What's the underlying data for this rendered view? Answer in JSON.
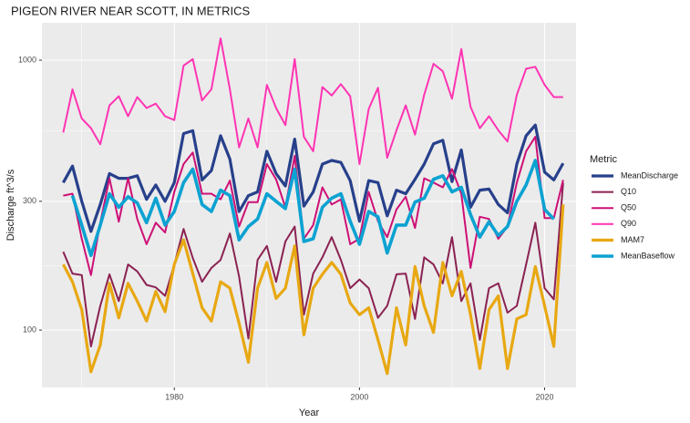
{
  "chart_data": {
    "type": "line",
    "title": "PIGEON RIVER NEAR SCOTT, IN  METRICS",
    "x_label": "Year",
    "y_label": "Discharge ft^3/s",
    "legend_title": "Metric",
    "legend": "right",
    "grid": true,
    "log_scale": "y",
    "xlim": [
      1965.7,
      2023.4
    ],
    "xticks": [
      1980,
      2000,
      2020
    ],
    "ylim": [
      61.3,
      1376
    ],
    "yticks": [
      100,
      300,
      1000
    ],
    "x": [
      1968,
      1969,
      1970,
      1971,
      1972,
      1973,
      1974,
      1975,
      1976,
      1977,
      1978,
      1979,
      1980,
      1981,
      1982,
      1983,
      1984,
      1985,
      1986,
      1987,
      1988,
      1989,
      1990,
      1991,
      1992,
      1993,
      1994,
      1995,
      1996,
      1997,
      1998,
      1999,
      2000,
      2001,
      2002,
      2003,
      2004,
      2005,
      2006,
      2007,
      2008,
      2009,
      2010,
      2011,
      2012,
      2013,
      2014,
      2015,
      2016,
      2017,
      2018,
      2019,
      2020,
      2021,
      2022
    ],
    "series": [
      {
        "name": "MeanDischarge",
        "color": "#27408b",
        "width": 3.2,
        "values": [
          352,
          405,
          300,
          232,
          292,
          380,
          365,
          365,
          373,
          305,
          345,
          300,
          352,
          535,
          548,
          360,
          390,
          525,
          430,
          275,
          315,
          325,
          460,
          380,
          342,
          510,
          288,
          325,
          412,
          425,
          418,
          358,
          253,
          358,
          352,
          265,
          330,
          320,
          362,
          412,
          490,
          505,
          355,
          465,
          285,
          330,
          333,
          292,
          272,
          412,
          525,
          575,
          385,
          360,
          415
        ]
      },
      {
        "name": "Q10",
        "color": "#8b2252",
        "width": 2,
        "values": [
          195,
          162,
          160,
          87,
          123,
          161,
          128,
          175,
          165,
          147,
          144,
          134,
          175,
          237,
          185,
          151,
          170,
          182,
          228,
          158,
          93,
          182,
          205,
          151,
          213,
          242,
          114,
          162,
          186,
          221,
          182,
          143,
          154,
          143,
          111,
          123,
          161,
          162,
          110,
          186,
          175,
          149,
          221,
          128,
          149,
          92,
          143,
          149,
          116,
          123,
          175,
          250,
          143,
          130,
          352
        ]
      },
      {
        "name": "Q50",
        "color": "#cd1076",
        "width": 2,
        "values": [
          315,
          320,
          218,
          160,
          250,
          365,
          252,
          365,
          258,
          208,
          250,
          230,
          325,
          412,
          455,
          320,
          320,
          305,
          358,
          242,
          298,
          298,
          412,
          362,
          285,
          442,
          218,
          245,
          338,
          292,
          305,
          208,
          218,
          325,
          253,
          221,
          280,
          312,
          239,
          365,
          352,
          338,
          395,
          320,
          170,
          263,
          258,
          218,
          242,
          352,
          460,
          520,
          260,
          260,
          360
        ]
      },
      {
        "name": "Q90",
        "color": "#ff34b3",
        "width": 2,
        "values": [
          540,
          780,
          608,
          560,
          488,
          680,
          735,
          620,
          730,
          665,
          690,
          620,
          600,
          955,
          1010,
          710,
          780,
          1205,
          780,
          475,
          608,
          475,
          810,
          665,
          575,
          1010,
          520,
          460,
          795,
          740,
          815,
          735,
          412,
          660,
          790,
          435,
          550,
          680,
          530,
          745,
          970,
          910,
          720,
          1100,
          672,
          560,
          620,
          550,
          500,
          745,
          930,
          945,
          810,
          730,
          730
        ]
      },
      {
        "name": "MAM7",
        "color": "#e8a812",
        "width": 3.2,
        "values": [
          175,
          151,
          119,
          70,
          88,
          149,
          111,
          149,
          128,
          108,
          139,
          117,
          175,
          216,
          162,
          121,
          108,
          151,
          143,
          106,
          76,
          143,
          178,
          131,
          143,
          205,
          96,
          143,
          161,
          178,
          161,
          126,
          114,
          121,
          92,
          69,
          121,
          88,
          172,
          123,
          98,
          178,
          134,
          165,
          114,
          72,
          119,
          134,
          72,
          110,
          114,
          172,
          123,
          87,
          292
        ]
      },
      {
        "name": "MeanBaseflow",
        "color": "#0ba2d2",
        "width": 3.6,
        "values": [
          null,
          315,
          245,
          189,
          245,
          320,
          285,
          312,
          296,
          250,
          308,
          245,
          275,
          352,
          395,
          292,
          275,
          330,
          315,
          216,
          242,
          258,
          320,
          300,
          282,
          395,
          213,
          218,
          285,
          308,
          320,
          253,
          208,
          275,
          263,
          193,
          245,
          245,
          298,
          308,
          362,
          373,
          325,
          338,
          268,
          221,
          252,
          224,
          242,
          300,
          345,
          425,
          280,
          258,
          null
        ]
      }
    ]
  }
}
